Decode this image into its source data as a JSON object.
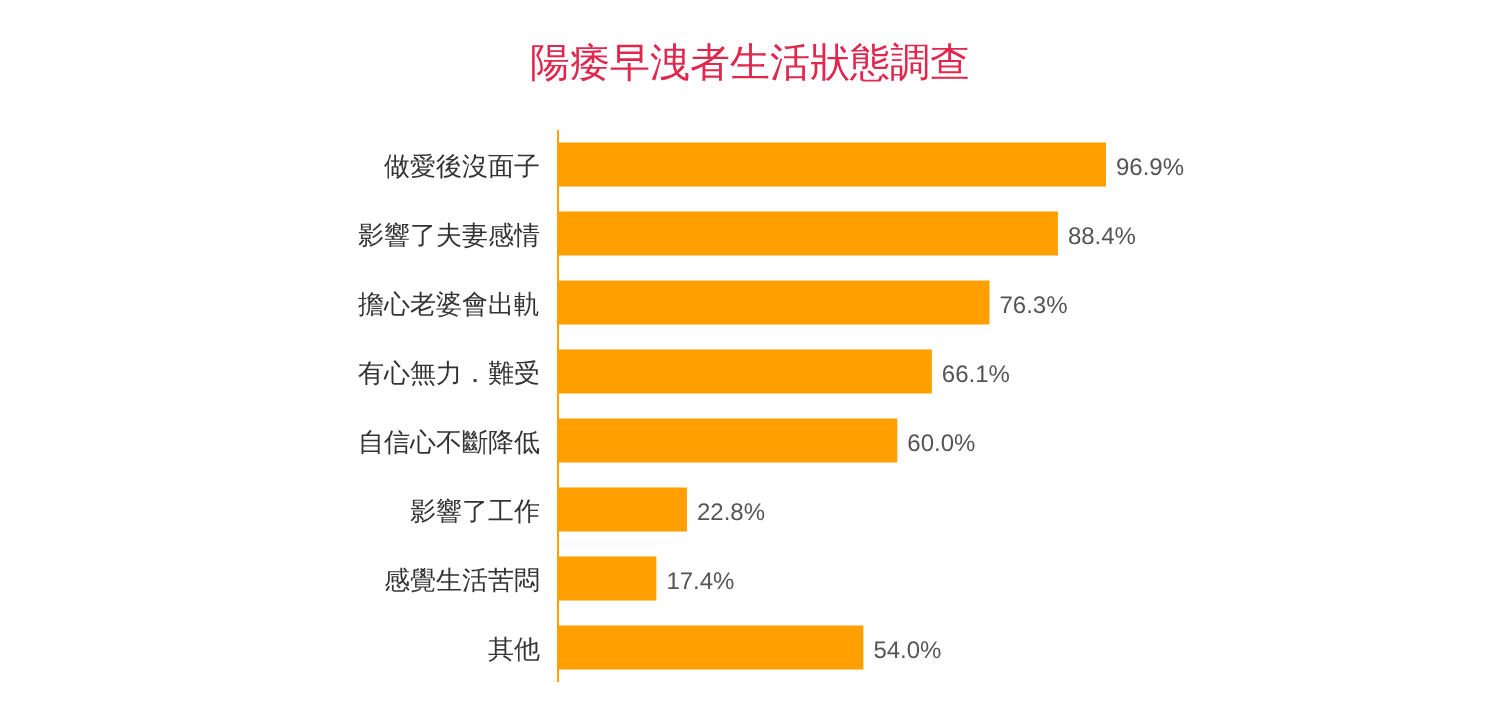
{
  "chart_data": {
    "type": "bar",
    "orientation": "horizontal",
    "title": "陽痿早洩者生活狀態調查",
    "categories": [
      "做愛後沒面子",
      "影響了夫妻感情",
      "擔心老婆會出軌",
      "有心無力．難受",
      "自信心不斷降低",
      "影響了工作",
      "感覺生活苦悶",
      "其他"
    ],
    "values": [
      96.9,
      88.4,
      76.3,
      66.1,
      60.0,
      22.8,
      17.4,
      54.0
    ],
    "value_labels": [
      "96.9%",
      "88.4%",
      "76.3%",
      "66.1%",
      "60.0%",
      "22.8%",
      "17.4%",
      "54.0%"
    ],
    "color": "#ffa000"
  }
}
